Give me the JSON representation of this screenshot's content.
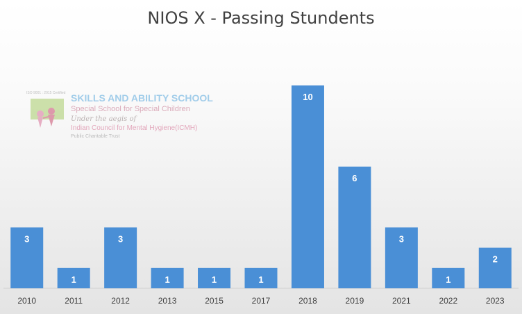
{
  "chart_data": {
    "type": "bar",
    "title": "NIOS X - Passing Stundents",
    "xlabel": "",
    "ylabel": "",
    "categories": [
      "2010",
      "2011",
      "2012",
      "2013",
      "2015",
      "2017",
      "2018",
      "2019",
      "2021",
      "2022",
      "2023"
    ],
    "values": [
      3,
      1,
      3,
      1,
      1,
      1,
      10,
      6,
      3,
      1,
      2
    ],
    "ylim": [
      0,
      10
    ],
    "grid": false,
    "legend": "none",
    "data_labels": true,
    "bar_color": "#4a8fd6"
  },
  "watermark": {
    "badge": "ISO 9001 : 2015 Certified",
    "name": "SKILLS AND ABILITY SCHOOL",
    "subtitle": "Special School for Special Children",
    "aegis": "Under the aegis of",
    "council": "Indian Council for Mental Hygiene(ICMH)",
    "trust": "Public Charitable Trust"
  }
}
